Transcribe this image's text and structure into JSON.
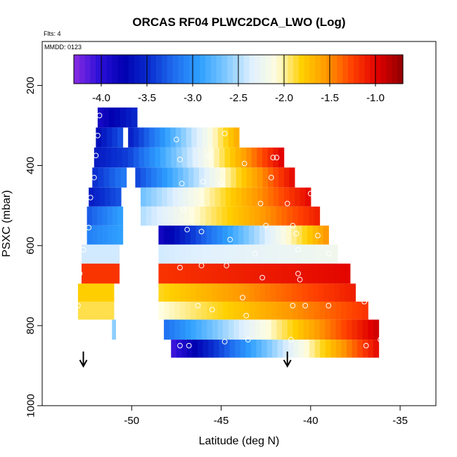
{
  "chart_data": {
    "type": "heatmap",
    "title": "ORCAS RF04 PLWC2DCA_LWO (Log)",
    "top_left_note": "Flts: 4",
    "panel_note": "MMDD: 0123",
    "xlabel": "Latitude (deg N)",
    "ylabel": "PSXC (mbar)",
    "xlim": [
      -55,
      -33
    ],
    "ylim": [
      1000,
      90
    ],
    "y_inverted": true,
    "x_ticks": [
      -50,
      -45,
      -40,
      -35
    ],
    "y_ticks": [
      200,
      400,
      600,
      800,
      1000
    ],
    "colorbar": {
      "min": -4.3,
      "max": -0.7,
      "ticks": [
        -4.0,
        -3.5,
        -3.0,
        -2.5,
        -2.0,
        -1.5,
        -1.0
      ],
      "tick_labels": [
        "-4.0",
        "-3.5",
        "-3.0",
        "-2.5",
        "-2.0",
        "-1.5",
        "-1.0"
      ],
      "palette": [
        "#8a2be2",
        "#2c0fd8",
        "#0000b0",
        "#0a2fd0",
        "#1f6ff0",
        "#2fa0ff",
        "#7fc8ff",
        "#dff0ff",
        "#fffde0",
        "#ffd000",
        "#ff9800",
        "#ff4000",
        "#e00000",
        "#900000"
      ]
    },
    "arrows_at_latitude": [
      -52.7,
      -41.3
    ],
    "rows": [
      {
        "p": 280,
        "segments": [
          {
            "x0": -51.9,
            "x1": -49.7,
            "v0": -3.9,
            "v1": -3.5
          }
        ]
      },
      {
        "p": 330,
        "segments": [
          {
            "x0": -52.0,
            "x1": -50.5,
            "v0": -3.7,
            "v1": -3.3
          },
          {
            "x0": -50.2,
            "x1": -44.0,
            "v0": -3.6,
            "v1": -1.6
          }
        ]
      },
      {
        "p": 380,
        "segments": [
          {
            "x0": -52.1,
            "x1": -50.2,
            "v0": -3.6,
            "v1": -3.4
          },
          {
            "x0": -50.2,
            "x1": -41.5,
            "v0": -3.4,
            "v1": -0.95
          }
        ]
      },
      {
        "p": 430,
        "segments": [
          {
            "x0": -52.2,
            "x1": -50.3,
            "v0": -3.5,
            "v1": -3.1
          },
          {
            "x0": -49.8,
            "x1": -40.9,
            "v0": -3.4,
            "v1": -1.0
          }
        ]
      },
      {
        "p": 480,
        "segments": [
          {
            "x0": -52.4,
            "x1": -50.6,
            "v0": -3.6,
            "v1": -3.3
          },
          {
            "x0": -49.5,
            "x1": -40.0,
            "v0": -2.7,
            "v1": -1.0
          }
        ]
      },
      {
        "p": 525,
        "segments": [
          {
            "x0": -52.5,
            "x1": -50.5,
            "v0": -3.3,
            "v1": -2.9
          },
          {
            "x0": -49.5,
            "x1": -39.5,
            "v0": -2.5,
            "v1": -1.1
          }
        ]
      },
      {
        "p": 575,
        "segments": [
          {
            "x0": -52.5,
            "x1": -50.5,
            "v0": -3.1,
            "v1": -2.9
          },
          {
            "x0": -48.5,
            "x1": -39.0,
            "v0": -3.9,
            "v1": -1.5
          }
        ]
      },
      {
        "p": 620,
        "segments": [
          {
            "x0": -52.8,
            "x1": -50.7,
            "v0": -2.4,
            "v1": -2.4
          },
          {
            "x0": -48.5,
            "x1": -38.5,
            "v0": -2.4,
            "v1": -2.2
          }
        ]
      },
      {
        "p": 670,
        "segments": [
          {
            "x0": -52.8,
            "x1": -50.7,
            "v0": -1.2,
            "v1": -1.2
          },
          {
            "x0": -48.5,
            "x1": -37.8,
            "v0": -1.2,
            "v1": -1.0
          }
        ]
      },
      {
        "p": 720,
        "segments": [
          {
            "x0": -53.0,
            "x1": -51.0,
            "v0": -1.8,
            "v1": -1.8
          },
          {
            "x0": -48.5,
            "x1": -37.5,
            "v0": -1.85,
            "v1": -1.1
          }
        ]
      },
      {
        "p": 760,
        "segments": [
          {
            "x0": -53.0,
            "x1": -51.0,
            "v0": -1.9,
            "v1": -1.9
          },
          {
            "x0": -48.5,
            "x1": -36.8,
            "v0": -2.1,
            "v1": -1.2
          }
        ]
      },
      {
        "p": 810,
        "segments": [
          {
            "x0": -51.1,
            "x1": -50.9,
            "v0": -2.6,
            "v1": -2.6
          },
          {
            "x0": -48.2,
            "x1": -36.2,
            "v0": -3.2,
            "v1": -0.9
          }
        ]
      },
      {
        "p": 860,
        "segments": [
          {
            "x0": -47.8,
            "x1": -36.2,
            "v0": -4.1,
            "v1": -1.0
          }
        ]
      }
    ],
    "points": [
      {
        "lat": -51.8,
        "p": 275
      },
      {
        "lat": -51.9,
        "p": 325
      },
      {
        "lat": -52.0,
        "p": 375
      },
      {
        "lat": -52.1,
        "p": 430
      },
      {
        "lat": -52.3,
        "p": 480
      },
      {
        "lat": -52.4,
        "p": 555
      },
      {
        "lat": -52.7,
        "p": 610
      },
      {
        "lat": -52.9,
        "p": 670
      },
      {
        "lat": -53.0,
        "p": 750
      },
      {
        "lat": -47.5,
        "p": 335
      },
      {
        "lat": -47.3,
        "p": 385
      },
      {
        "lat": -47.2,
        "p": 445
      },
      {
        "lat": -47.1,
        "p": 510
      },
      {
        "lat": -46.9,
        "p": 560
      },
      {
        "lat": -45.7,
        "p": 375
      },
      {
        "lat": -46.0,
        "p": 440
      },
      {
        "lat": -46.1,
        "p": 565
      },
      {
        "lat": -45.0,
        "p": 445
      },
      {
        "lat": -44.8,
        "p": 320
      },
      {
        "lat": -44.5,
        "p": 585
      },
      {
        "lat": -43.7,
        "p": 395
      },
      {
        "lat": -42.8,
        "p": 495
      },
      {
        "lat": -42.5,
        "p": 550
      },
      {
        "lat": -42.1,
        "p": 380
      },
      {
        "lat": -41.9,
        "p": 380
      },
      {
        "lat": -42.2,
        "p": 430
      },
      {
        "lat": -41.3,
        "p": 495
      },
      {
        "lat": -41.0,
        "p": 550
      },
      {
        "lat": -40.8,
        "p": 570
      },
      {
        "lat": -40.7,
        "p": 610
      },
      {
        "lat": -40.0,
        "p": 470
      },
      {
        "lat": -39.6,
        "p": 575
      },
      {
        "lat": -39.0,
        "p": 620
      },
      {
        "lat": -46.3,
        "p": 750
      },
      {
        "lat": -47.3,
        "p": 655
      },
      {
        "lat": -46.1,
        "p": 650
      },
      {
        "lat": -44.7,
        "p": 650
      },
      {
        "lat": -43.1,
        "p": 620
      },
      {
        "lat": -42.7,
        "p": 680
      },
      {
        "lat": -40.7,
        "p": 670
      },
      {
        "lat": -40.6,
        "p": 685
      },
      {
        "lat": -41.0,
        "p": 750
      },
      {
        "lat": -40.3,
        "p": 750
      },
      {
        "lat": -39.0,
        "p": 750
      },
      {
        "lat": -37.0,
        "p": 740
      },
      {
        "lat": -45.5,
        "p": 760
      },
      {
        "lat": -43.8,
        "p": 730
      },
      {
        "lat": -43.6,
        "p": 775
      },
      {
        "lat": -47.3,
        "p": 850
      },
      {
        "lat": -46.8,
        "p": 850
      },
      {
        "lat": -44.8,
        "p": 840
      },
      {
        "lat": -43.5,
        "p": 835
      },
      {
        "lat": -41.1,
        "p": 835
      },
      {
        "lat": -36.9,
        "p": 850
      },
      {
        "lat": -36.1,
        "p": 835
      }
    ]
  }
}
